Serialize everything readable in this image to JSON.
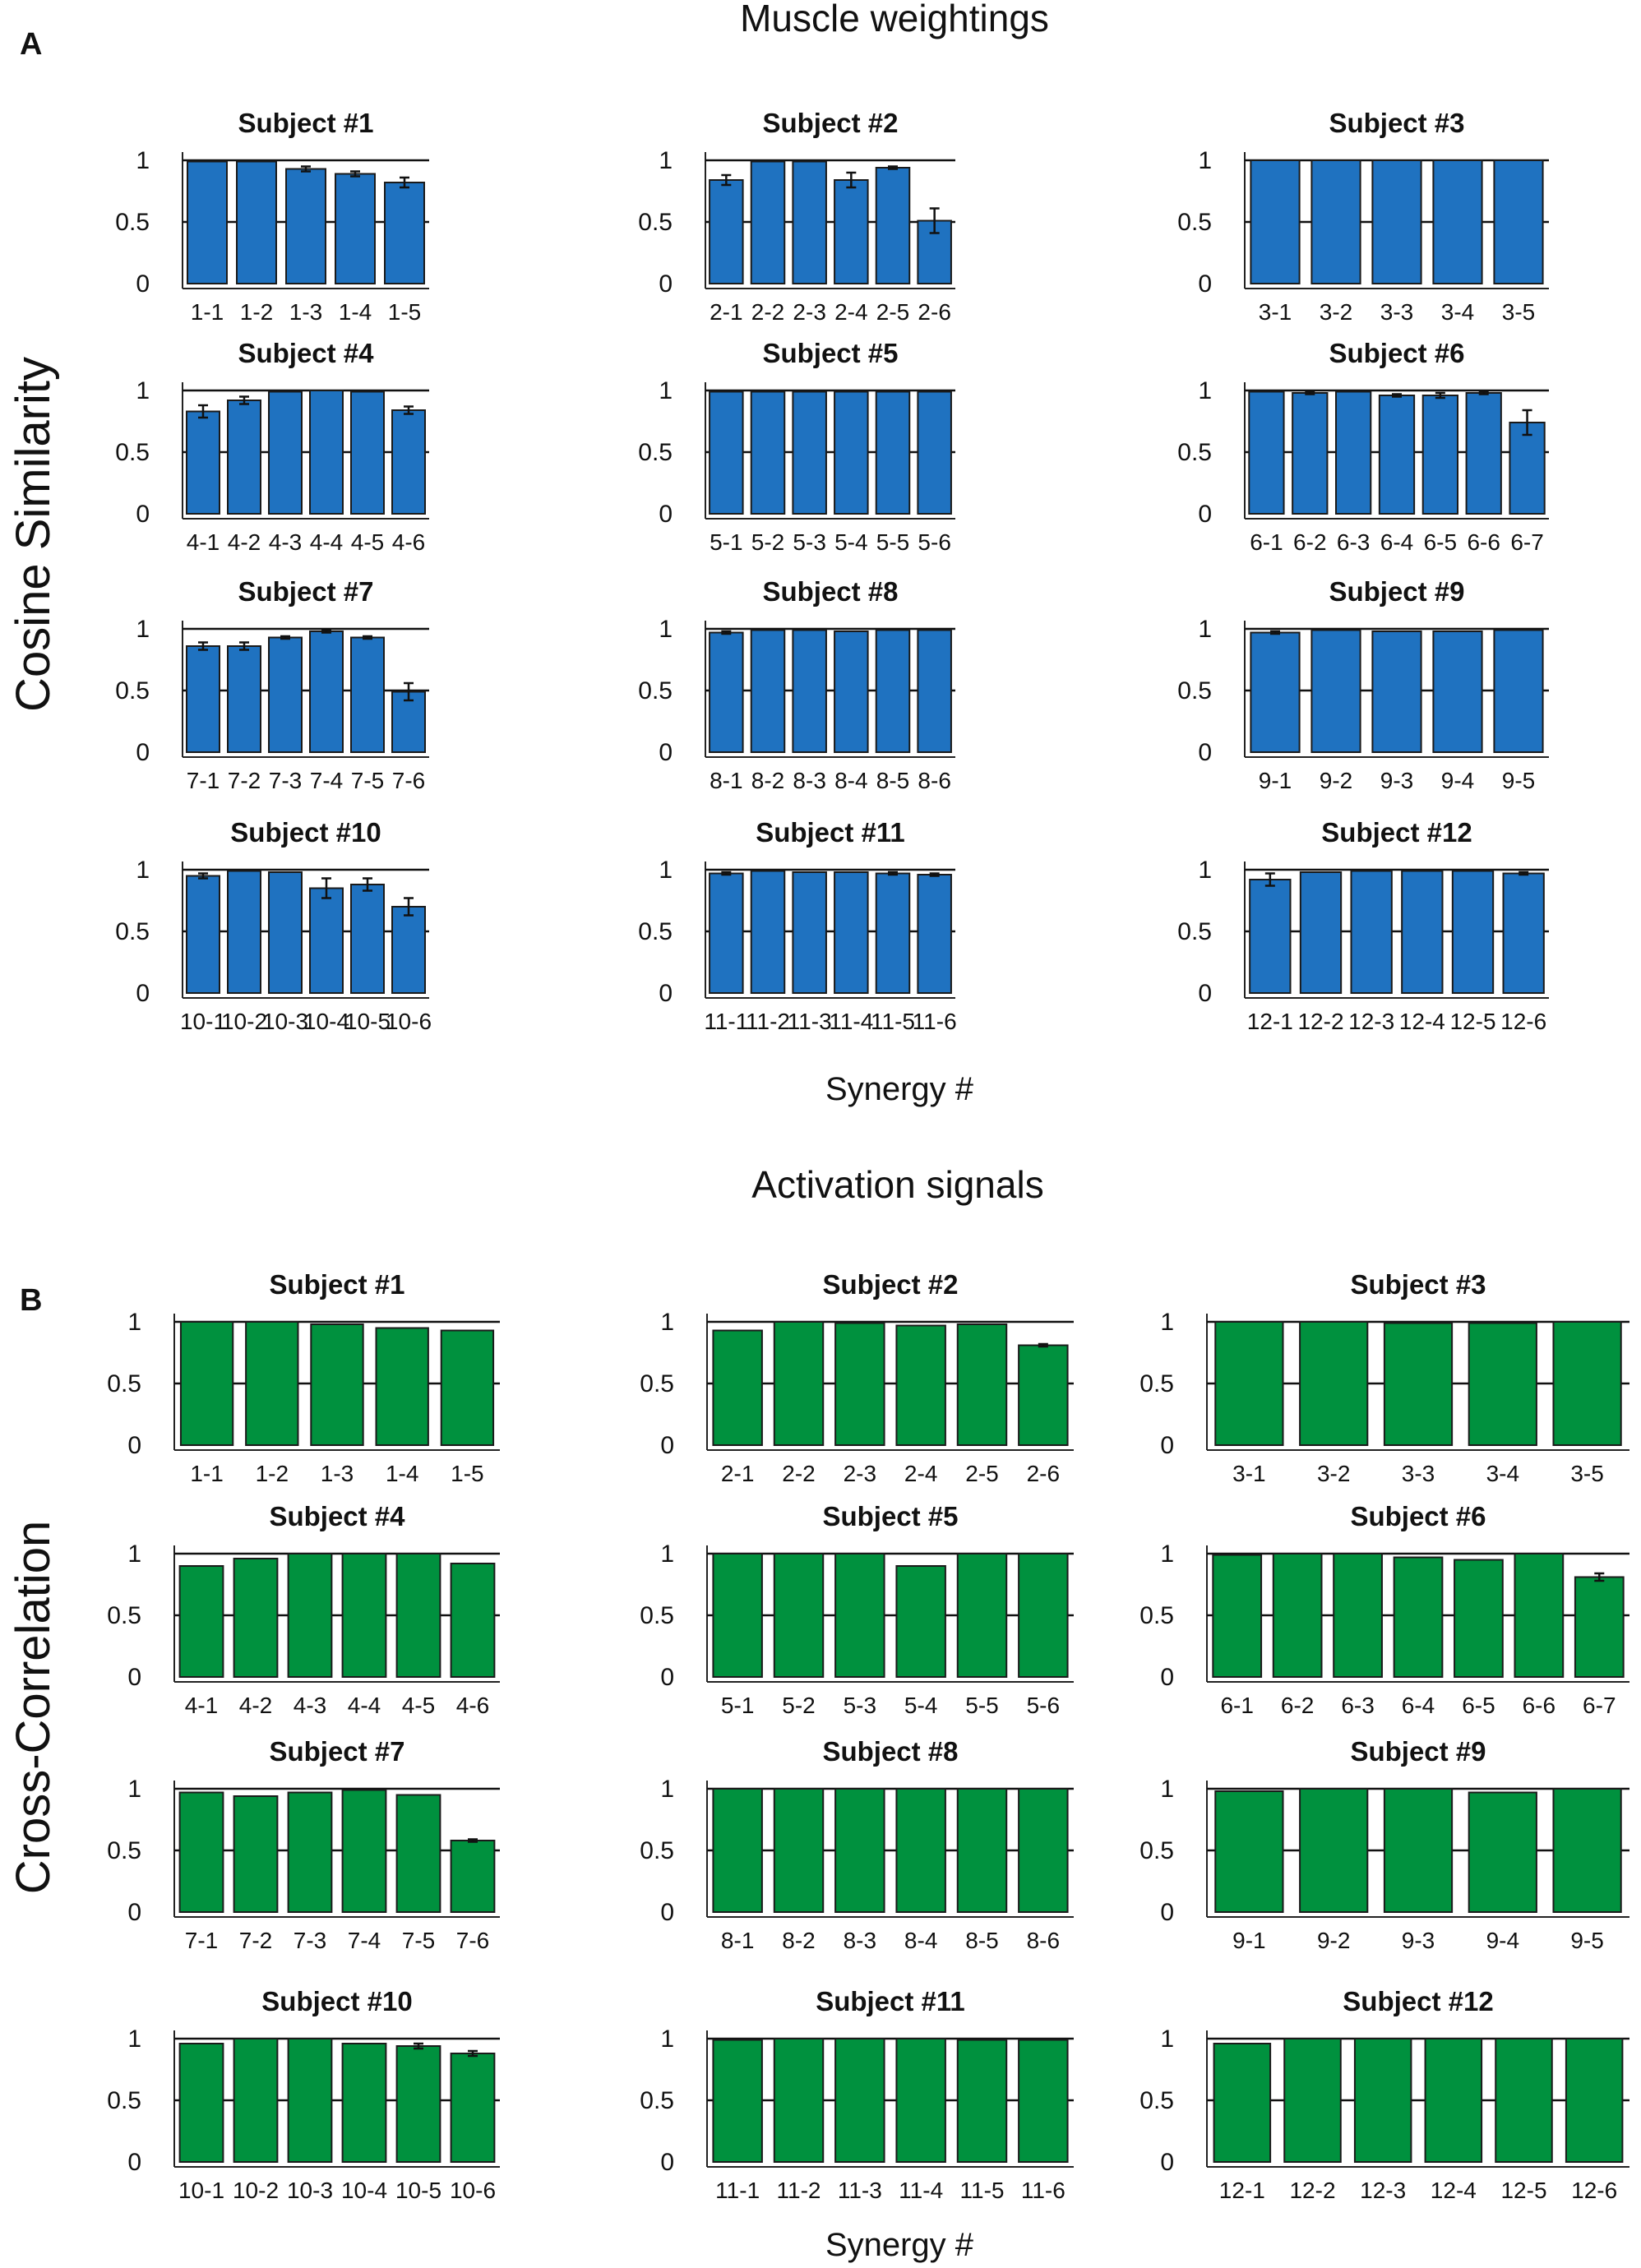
{
  "colors": {
    "weightings_bar": "#1f72c0",
    "activation_bar": "#00913e",
    "bar_edge": "#1a1a1a",
    "text": "#111111"
  },
  "figure": {
    "title_a": "Muscle weightings",
    "title_b": "Activation signals",
    "letter_a": "A",
    "letter_b": "B",
    "ylabel_a": "Cosine Similarity",
    "ylabel_b": "Cross-Correlation",
    "xlabel_a": "Synergy #",
    "xlabel_b": "Synergy #"
  },
  "chart_data": [
    {
      "type": "bar",
      "section": "A",
      "title": "Subject #1",
      "categories": [
        "1-1",
        "1-2",
        "1-3",
        "1-4",
        "1-5"
      ],
      "values": [
        0.99,
        0.99,
        0.93,
        0.89,
        0.82
      ],
      "errors": [
        0.0,
        0.0,
        0.02,
        0.02,
        0.04
      ],
      "yticks": [
        "0",
        "0.5",
        "1"
      ],
      "ylim": [
        0,
        1
      ]
    },
    {
      "type": "bar",
      "section": "A",
      "title": "Subject #2",
      "categories": [
        "2-1",
        "2-2",
        "2-3",
        "2-4",
        "2-5",
        "2-6"
      ],
      "values": [
        0.84,
        0.99,
        0.99,
        0.84,
        0.94,
        0.51
      ],
      "errors": [
        0.04,
        0.0,
        0.0,
        0.06,
        0.01,
        0.1
      ],
      "yticks": [
        "0",
        "0.5",
        "1"
      ],
      "ylim": [
        0,
        1
      ]
    },
    {
      "type": "bar",
      "section": "A",
      "title": "Subject #3",
      "categories": [
        "3-1",
        "3-2",
        "3-3",
        "3-4",
        "3-5"
      ],
      "values": [
        1.0,
        1.0,
        1.0,
        1.0,
        1.0
      ],
      "errors": [
        0,
        0,
        0,
        0,
        0
      ],
      "yticks": [
        "0",
        "0.5",
        "1"
      ],
      "ylim": [
        0,
        1
      ]
    },
    {
      "type": "bar",
      "section": "A",
      "title": "Subject #4",
      "categories": [
        "4-1",
        "4-2",
        "4-3",
        "4-4",
        "4-5",
        "4-6"
      ],
      "values": [
        0.83,
        0.92,
        0.99,
        1.0,
        0.99,
        0.84
      ],
      "errors": [
        0.05,
        0.03,
        0.0,
        0.0,
        0.0,
        0.03
      ],
      "yticks": [
        "0",
        "0.5",
        "1"
      ],
      "ylim": [
        0,
        1
      ]
    },
    {
      "type": "bar",
      "section": "A",
      "title": "Subject #5",
      "categories": [
        "5-1",
        "5-2",
        "5-3",
        "5-4",
        "5-5",
        "5-6"
      ],
      "values": [
        0.99,
        0.99,
        0.99,
        0.99,
        0.99,
        0.99
      ],
      "errors": [
        0,
        0,
        0,
        0,
        0,
        0
      ],
      "yticks": [
        "0",
        "0.5",
        "1"
      ],
      "ylim": [
        0,
        1
      ]
    },
    {
      "type": "bar",
      "section": "A",
      "title": "Subject #6",
      "categories": [
        "6-1",
        "6-2",
        "6-3",
        "6-4",
        "6-5",
        "6-6",
        "6-7"
      ],
      "values": [
        0.99,
        0.98,
        0.99,
        0.96,
        0.96,
        0.98,
        0.74
      ],
      "errors": [
        0.0,
        0.01,
        0.0,
        0.01,
        0.02,
        0.01,
        0.1
      ],
      "yticks": [
        "0",
        "0.5",
        "1"
      ],
      "ylim": [
        0,
        1
      ]
    },
    {
      "type": "bar",
      "section": "A",
      "title": "Subject #7",
      "categories": [
        "7-1",
        "7-2",
        "7-3",
        "7-4",
        "7-5",
        "7-6"
      ],
      "values": [
        0.86,
        0.86,
        0.93,
        0.98,
        0.93,
        0.49
      ],
      "errors": [
        0.03,
        0.03,
        0.01,
        0.01,
        0.01,
        0.07
      ],
      "yticks": [
        "0",
        "0.5",
        "1"
      ],
      "ylim": [
        0,
        1
      ]
    },
    {
      "type": "bar",
      "section": "A",
      "title": "Subject #8",
      "categories": [
        "8-1",
        "8-2",
        "8-3",
        "8-4",
        "8-5",
        "8-6"
      ],
      "values": [
        0.97,
        0.99,
        0.99,
        0.98,
        0.99,
        0.99
      ],
      "errors": [
        0.01,
        0.0,
        0.0,
        0.0,
        0.0,
        0.0
      ],
      "yticks": [
        "0",
        "0.5",
        "1"
      ],
      "ylim": [
        0,
        1
      ]
    },
    {
      "type": "bar",
      "section": "A",
      "title": "Subject #9",
      "categories": [
        "9-1",
        "9-2",
        "9-3",
        "9-4",
        "9-5"
      ],
      "values": [
        0.97,
        0.99,
        0.98,
        0.98,
        0.99
      ],
      "errors": [
        0.01,
        0.0,
        0.0,
        0.0,
        0.0
      ],
      "yticks": [
        "0",
        "0.5",
        "1"
      ],
      "ylim": [
        0,
        1
      ]
    },
    {
      "type": "bar",
      "section": "A",
      "title": "Subject #10",
      "categories": [
        "10-1",
        "10-2",
        "10-3",
        "10-4",
        "10-5",
        "10-6"
      ],
      "values": [
        0.95,
        0.99,
        0.98,
        0.85,
        0.88,
        0.7
      ],
      "errors": [
        0.02,
        0.0,
        0.0,
        0.08,
        0.05,
        0.07
      ],
      "yticks": [
        "0",
        "0.5",
        "1"
      ],
      "ylim": [
        0,
        1
      ]
    },
    {
      "type": "bar",
      "section": "A",
      "title": "Subject #11",
      "categories": [
        "11-1",
        "11-2",
        "11-3",
        "11-4",
        "11-5",
        "11-6"
      ],
      "values": [
        0.97,
        0.99,
        0.98,
        0.98,
        0.97,
        0.96
      ],
      "errors": [
        0.01,
        0.0,
        0.0,
        0.0,
        0.01,
        0.01
      ],
      "yticks": [
        "0",
        "0.5",
        "1"
      ],
      "ylim": [
        0,
        1
      ]
    },
    {
      "type": "bar",
      "section": "A",
      "title": "Subject #12",
      "categories": [
        "12-1",
        "12-2",
        "12-3",
        "12-4",
        "12-5",
        "12-6"
      ],
      "values": [
        0.92,
        0.98,
        0.99,
        0.99,
        0.99,
        0.97
      ],
      "errors": [
        0.05,
        0.0,
        0.0,
        0.0,
        0.0,
        0.01
      ],
      "yticks": [
        "0",
        "0.5",
        "1"
      ],
      "ylim": [
        0,
        1
      ]
    },
    {
      "type": "bar",
      "section": "B",
      "title": "Subject #1",
      "categories": [
        "1-1",
        "1-2",
        "1-3",
        "1-4",
        "1-5"
      ],
      "values": [
        1.0,
        1.0,
        0.98,
        0.95,
        0.93
      ],
      "errors": [
        0,
        0,
        0,
        0,
        0
      ],
      "yticks": [
        "0",
        "0.5",
        "1"
      ],
      "ylim": [
        0,
        1
      ]
    },
    {
      "type": "bar",
      "section": "B",
      "title": "Subject #2",
      "categories": [
        "2-1",
        "2-2",
        "2-3",
        "2-4",
        "2-5",
        "2-6"
      ],
      "values": [
        0.93,
        1.0,
        0.99,
        0.97,
        0.98,
        0.81
      ],
      "errors": [
        0.0,
        0.0,
        0.0,
        0.0,
        0.0,
        0.01
      ],
      "yticks": [
        "0",
        "0.5",
        "1"
      ],
      "ylim": [
        0,
        1
      ]
    },
    {
      "type": "bar",
      "section": "B",
      "title": "Subject #3",
      "categories": [
        "3-1",
        "3-2",
        "3-3",
        "3-4",
        "3-5"
      ],
      "values": [
        1.0,
        1.0,
        0.99,
        0.99,
        1.0
      ],
      "errors": [
        0,
        0,
        0,
        0,
        0
      ],
      "yticks": [
        "0",
        "0.5",
        "1"
      ],
      "ylim": [
        0,
        1
      ]
    },
    {
      "type": "bar",
      "section": "B",
      "title": "Subject #4",
      "categories": [
        "4-1",
        "4-2",
        "4-3",
        "4-4",
        "4-5",
        "4-6"
      ],
      "values": [
        0.9,
        0.96,
        1.0,
        1.0,
        1.0,
        0.92
      ],
      "errors": [
        0.0,
        0.0,
        0.0,
        0.0,
        0.0,
        0.0
      ],
      "yticks": [
        "0",
        "0.5",
        "1"
      ],
      "ylim": [
        0,
        1
      ]
    },
    {
      "type": "bar",
      "section": "B",
      "title": "Subject #5",
      "categories": [
        "5-1",
        "5-2",
        "5-3",
        "5-4",
        "5-5",
        "5-6"
      ],
      "values": [
        1.0,
        1.0,
        1.0,
        0.9,
        1.0,
        1.0
      ],
      "errors": [
        0,
        0,
        0,
        0,
        0,
        0
      ],
      "yticks": [
        "0",
        "0.5",
        "1"
      ],
      "ylim": [
        0,
        1
      ]
    },
    {
      "type": "bar",
      "section": "B",
      "title": "Subject #6",
      "categories": [
        "6-1",
        "6-2",
        "6-3",
        "6-4",
        "6-5",
        "6-6",
        "6-7"
      ],
      "values": [
        0.99,
        1.0,
        1.0,
        0.97,
        0.95,
        1.0,
        0.81
      ],
      "errors": [
        0.0,
        0.0,
        0.0,
        0.0,
        0.0,
        0.0,
        0.03
      ],
      "yticks": [
        "0",
        "0.5",
        "1"
      ],
      "ylim": [
        0,
        1
      ]
    },
    {
      "type": "bar",
      "section": "B",
      "title": "Subject #7",
      "categories": [
        "7-1",
        "7-2",
        "7-3",
        "7-4",
        "7-5",
        "7-6"
      ],
      "values": [
        0.97,
        0.94,
        0.97,
        0.99,
        0.95,
        0.58
      ],
      "errors": [
        0.0,
        0.0,
        0.0,
        0.0,
        0.0,
        0.01
      ],
      "yticks": [
        "0",
        "0.5",
        "1"
      ],
      "ylim": [
        0,
        1
      ]
    },
    {
      "type": "bar",
      "section": "B",
      "title": "Subject #8",
      "categories": [
        "8-1",
        "8-2",
        "8-3",
        "8-4",
        "8-5",
        "8-6"
      ],
      "values": [
        1.0,
        1.0,
        1.0,
        1.0,
        1.0,
        1.0
      ],
      "errors": [
        0,
        0,
        0,
        0,
        0,
        0
      ],
      "yticks": [
        "0",
        "0.5",
        "1"
      ],
      "ylim": [
        0,
        1
      ]
    },
    {
      "type": "bar",
      "section": "B",
      "title": "Subject #9",
      "categories": [
        "9-1",
        "9-2",
        "9-3",
        "9-4",
        "9-5"
      ],
      "values": [
        0.98,
        1.0,
        1.0,
        0.97,
        1.0
      ],
      "errors": [
        0,
        0,
        0,
        0,
        0
      ],
      "yticks": [
        "0",
        "0.5",
        "1"
      ],
      "ylim": [
        0,
        1
      ]
    },
    {
      "type": "bar",
      "section": "B",
      "title": "Subject #10",
      "categories": [
        "10-1",
        "10-2",
        "10-3",
        "10-4",
        "10-5",
        "10-6"
      ],
      "values": [
        0.96,
        1.0,
        1.0,
        0.96,
        0.94,
        0.88
      ],
      "errors": [
        0.0,
        0.0,
        0.0,
        0.0,
        0.02,
        0.02
      ],
      "yticks": [
        "0",
        "0.5",
        "1"
      ],
      "ylim": [
        0,
        1
      ]
    },
    {
      "type": "bar",
      "section": "B",
      "title": "Subject #11",
      "categories": [
        "11-1",
        "11-2",
        "11-3",
        "11-4",
        "11-5",
        "11-6"
      ],
      "values": [
        0.99,
        1.0,
        1.0,
        1.0,
        0.99,
        0.99
      ],
      "errors": [
        0,
        0,
        0,
        0,
        0,
        0
      ],
      "yticks": [
        "0",
        "0.5",
        "1"
      ],
      "ylim": [
        0,
        1
      ]
    },
    {
      "type": "bar",
      "section": "B",
      "title": "Subject #12",
      "categories": [
        "12-1",
        "12-2",
        "12-3",
        "12-4",
        "12-5",
        "12-6"
      ],
      "values": [
        0.96,
        1.0,
        1.0,
        1.0,
        1.0,
        1.0
      ],
      "errors": [
        0,
        0,
        0,
        0,
        0,
        0
      ],
      "yticks": [
        "0",
        "0.5",
        "1"
      ],
      "ylim": [
        0,
        1
      ]
    }
  ]
}
